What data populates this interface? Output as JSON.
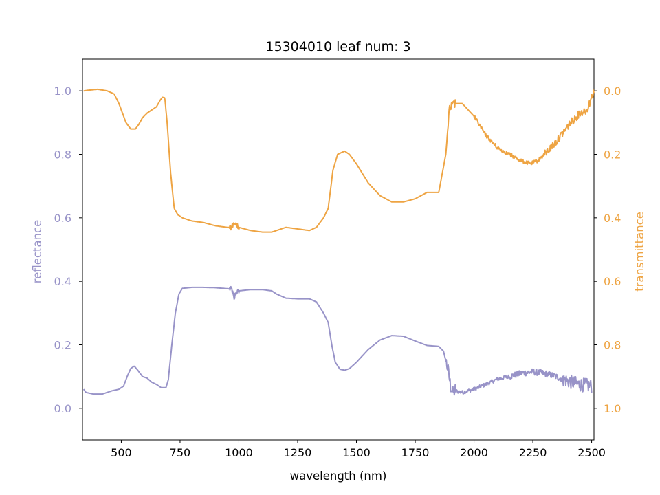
{
  "chart_data": {
    "type": "line",
    "title": "15304010 leaf num: 3",
    "xlabel": "wavelength (nm)",
    "xlim": [
      335,
      2510
    ],
    "xticks": [
      500,
      750,
      1000,
      1250,
      1500,
      1750,
      2000,
      2250,
      2500
    ],
    "x_tick_labels": [
      "500",
      "750",
      "1000",
      "1250",
      "1500",
      "1750",
      "2000",
      "2250",
      "2500"
    ],
    "grid": false,
    "legend": "none",
    "left_axis": {
      "label": "reflectance",
      "color": "#9893c8",
      "ylim": [
        -0.1,
        1.1
      ],
      "ticks": [
        0.0,
        0.2,
        0.4,
        0.6,
        0.8,
        1.0
      ],
      "tick_labels": [
        "0.0",
        "0.2",
        "0.4",
        "0.6",
        "0.8",
        "1.0"
      ]
    },
    "right_axis": {
      "label": "transmittance",
      "color": "#eea443",
      "inverted": true,
      "ylim": [
        1.1,
        -0.1
      ],
      "ticks": [
        0.0,
        0.2,
        0.4,
        0.6,
        0.8,
        1.0
      ],
      "tick_labels": [
        "0.0",
        "0.2",
        "0.4",
        "0.6",
        "0.8",
        "1.0"
      ]
    },
    "series": [
      {
        "axis": "left",
        "color": "#9893c8",
        "noise": [
          [
            960,
            1000,
            0.008
          ],
          [
            1880,
            1920,
            0.02
          ],
          [
            1920,
            2150,
            0.006
          ],
          [
            2150,
            2380,
            0.01
          ],
          [
            2380,
            2500,
            0.022
          ]
        ],
        "points": [
          [
            340,
            0.06
          ],
          [
            350,
            0.05
          ],
          [
            380,
            0.045
          ],
          [
            420,
            0.045
          ],
          [
            460,
            0.055
          ],
          [
            490,
            0.06
          ],
          [
            510,
            0.07
          ],
          [
            525,
            0.1
          ],
          [
            540,
            0.125
          ],
          [
            555,
            0.133
          ],
          [
            570,
            0.12
          ],
          [
            590,
            0.1
          ],
          [
            610,
            0.095
          ],
          [
            630,
            0.082
          ],
          [
            650,
            0.075
          ],
          [
            670,
            0.065
          ],
          [
            690,
            0.065
          ],
          [
            700,
            0.09
          ],
          [
            715,
            0.2
          ],
          [
            730,
            0.3
          ],
          [
            745,
            0.36
          ],
          [
            760,
            0.378
          ],
          [
            800,
            0.381
          ],
          [
            850,
            0.381
          ],
          [
            900,
            0.38
          ],
          [
            950,
            0.377
          ],
          [
            970,
            0.375
          ],
          [
            975,
            0.36
          ],
          [
            980,
            0.34
          ],
          [
            985,
            0.362
          ],
          [
            1000,
            0.37
          ],
          [
            1050,
            0.374
          ],
          [
            1100,
            0.374
          ],
          [
            1140,
            0.37
          ],
          [
            1160,
            0.36
          ],
          [
            1200,
            0.347
          ],
          [
            1250,
            0.345
          ],
          [
            1300,
            0.345
          ],
          [
            1330,
            0.335
          ],
          [
            1360,
            0.3
          ],
          [
            1380,
            0.27
          ],
          [
            1395,
            0.2
          ],
          [
            1410,
            0.145
          ],
          [
            1430,
            0.123
          ],
          [
            1450,
            0.12
          ],
          [
            1470,
            0.125
          ],
          [
            1500,
            0.145
          ],
          [
            1550,
            0.185
          ],
          [
            1600,
            0.215
          ],
          [
            1650,
            0.229
          ],
          [
            1700,
            0.227
          ],
          [
            1750,
            0.212
          ],
          [
            1800,
            0.198
          ],
          [
            1850,
            0.195
          ],
          [
            1870,
            0.18
          ],
          [
            1890,
            0.12
          ],
          [
            1900,
            0.07
          ],
          [
            1910,
            0.05
          ],
          [
            1920,
            0.055
          ],
          [
            1950,
            0.05
          ],
          [
            2000,
            0.06
          ],
          [
            2050,
            0.075
          ],
          [
            2100,
            0.092
          ],
          [
            2150,
            0.1
          ],
          [
            2200,
            0.11
          ],
          [
            2250,
            0.115
          ],
          [
            2300,
            0.11
          ],
          [
            2350,
            0.1
          ],
          [
            2400,
            0.085
          ],
          [
            2450,
            0.075
          ],
          [
            2500,
            0.07
          ]
        ]
      },
      {
        "axis": "right",
        "color": "#eea443",
        "noise": [
          [
            960,
            1000,
            0.008
          ],
          [
            1890,
            1920,
            0.015
          ],
          [
            2000,
            2150,
            0.006
          ],
          [
            2150,
            2300,
            0.006
          ],
          [
            2300,
            2510,
            0.012
          ]
        ],
        "points": [
          [
            340,
            0.0
          ],
          [
            360,
            -0.002
          ],
          [
            400,
            -0.005
          ],
          [
            440,
            0.0
          ],
          [
            470,
            0.01
          ],
          [
            490,
            0.04
          ],
          [
            505,
            0.07
          ],
          [
            520,
            0.1
          ],
          [
            540,
            0.12
          ],
          [
            560,
            0.12
          ],
          [
            575,
            0.105
          ],
          [
            590,
            0.085
          ],
          [
            610,
            0.07
          ],
          [
            630,
            0.06
          ],
          [
            650,
            0.05
          ],
          [
            665,
            0.03
          ],
          [
            675,
            0.02
          ],
          [
            685,
            0.022
          ],
          [
            695,
            0.1
          ],
          [
            710,
            0.26
          ],
          [
            725,
            0.37
          ],
          [
            740,
            0.39
          ],
          [
            760,
            0.4
          ],
          [
            800,
            0.41
          ],
          [
            850,
            0.415
          ],
          [
            900,
            0.425
          ],
          [
            950,
            0.43
          ],
          [
            970,
            0.43
          ],
          [
            975,
            0.42
          ],
          [
            980,
            0.41
          ],
          [
            990,
            0.425
          ],
          [
            1000,
            0.43
          ],
          [
            1050,
            0.44
          ],
          [
            1100,
            0.445
          ],
          [
            1140,
            0.445
          ],
          [
            1160,
            0.44
          ],
          [
            1200,
            0.43
          ],
          [
            1250,
            0.435
          ],
          [
            1300,
            0.44
          ],
          [
            1330,
            0.43
          ],
          [
            1360,
            0.4
          ],
          [
            1380,
            0.37
          ],
          [
            1400,
            0.25
          ],
          [
            1420,
            0.2
          ],
          [
            1450,
            0.19
          ],
          [
            1470,
            0.2
          ],
          [
            1500,
            0.23
          ],
          [
            1550,
            0.29
          ],
          [
            1600,
            0.33
          ],
          [
            1650,
            0.35
          ],
          [
            1700,
            0.35
          ],
          [
            1750,
            0.34
          ],
          [
            1800,
            0.32
          ],
          [
            1850,
            0.32
          ],
          [
            1880,
            0.2
          ],
          [
            1895,
            0.06
          ],
          [
            1905,
            0.05
          ],
          [
            1920,
            0.04
          ],
          [
            1950,
            0.04
          ],
          [
            2000,
            0.08
          ],
          [
            2050,
            0.14
          ],
          [
            2100,
            0.18
          ],
          [
            2150,
            0.2
          ],
          [
            2200,
            0.22
          ],
          [
            2240,
            0.23
          ],
          [
            2270,
            0.22
          ],
          [
            2300,
            0.2
          ],
          [
            2350,
            0.16
          ],
          [
            2400,
            0.11
          ],
          [
            2450,
            0.07
          ],
          [
            2480,
            0.06
          ],
          [
            2500,
            0.02
          ],
          [
            2510,
            0.0
          ]
        ]
      }
    ]
  }
}
